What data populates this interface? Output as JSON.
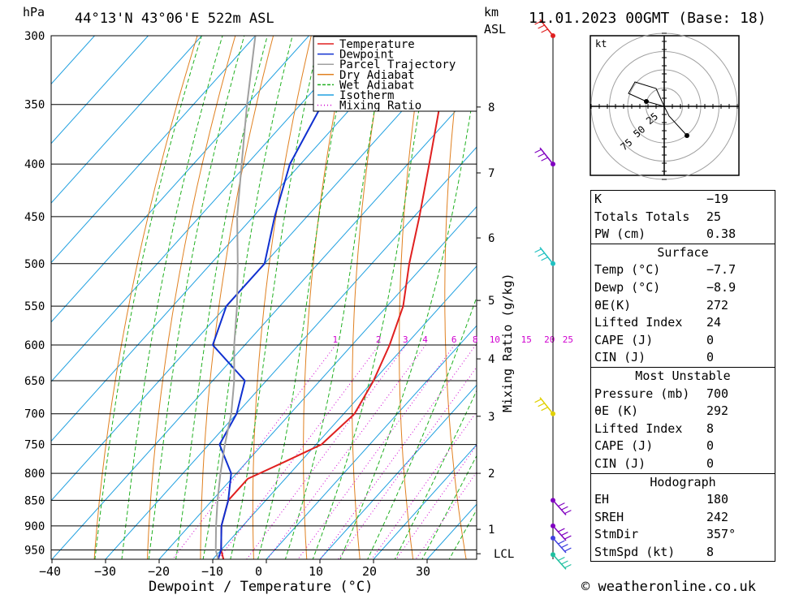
{
  "header": {
    "hpa_label": "hPa",
    "location": "44°13'N 43°06'E 522m ASL",
    "km_label": "km",
    "asl_label": "ASL",
    "datetime": "11.01.2023 00GMT (Base: 18)"
  },
  "footer": {
    "copyright": "© weatheronline.co.uk"
  },
  "legend": [
    {
      "label": "Temperature",
      "color": "#e02020",
      "dash": ""
    },
    {
      "label": "Dewpoint",
      "color": "#1030d0",
      "dash": ""
    },
    {
      "label": "Parcel Trajectory",
      "color": "#a0a0a0",
      "dash": ""
    },
    {
      "label": "Dry Adiabat",
      "color": "#e08020",
      "dash": ""
    },
    {
      "label": "Wet Adiabat",
      "color": "#20b020",
      "dash": "4,2"
    },
    {
      "label": "Isotherm",
      "color": "#20a0e0",
      "dash": ""
    },
    {
      "label": "Mixing Ratio",
      "color": "#d000d0",
      "dash": "1,3"
    }
  ],
  "chart_data": {
    "type": "line",
    "title": "44°13'N 43°06'E 522m ASL",
    "xlabel": "Dewpoint / Temperature (°C)",
    "ylabel": "hPa",
    "right_axis_label": "Mixing Ratio (g/kg)",
    "x_ticks": [
      -40,
      -30,
      -20,
      -10,
      0,
      10,
      20,
      30
    ],
    "x_tick_labels": [
      "−40",
      "−30",
      "−20",
      "−10",
      "0",
      "10",
      "20",
      "30"
    ],
    "p_levels": [
      300,
      350,
      400,
      450,
      500,
      550,
      600,
      650,
      700,
      750,
      800,
      850,
      900,
      950
    ],
    "km_ticks": [
      {
        "label": "8",
        "p": 352
      },
      {
        "label": "7",
        "p": 408
      },
      {
        "label": "6",
        "p": 472
      },
      {
        "label": "5",
        "p": 543
      },
      {
        "label": "4",
        "p": 619
      },
      {
        "label": "3",
        "p": 704
      },
      {
        "label": "2",
        "p": 800
      },
      {
        "label": "1",
        "p": 907
      },
      {
        "label": "LCL",
        "p": 958
      }
    ],
    "mixing_ratio_labels": [
      "1",
      "2",
      "3",
      "4",
      "6",
      "8",
      "10",
      "15",
      "20",
      "25"
    ],
    "mixing_ratio_values": [
      1,
      2,
      3,
      4,
      6,
      8,
      10,
      15,
      20,
      25
    ],
    "series": [
      {
        "name": "Temperature",
        "color": "#e02020",
        "points": [
          [
            300,
            -53
          ],
          [
            350,
            -44
          ],
          [
            400,
            -36
          ],
          [
            450,
            -29
          ],
          [
            500,
            -23
          ],
          [
            550,
            -17
          ],
          [
            600,
            -13
          ],
          [
            650,
            -10
          ],
          [
            700,
            -8
          ],
          [
            750,
            -9
          ],
          [
            780,
            -13
          ],
          [
            810,
            -17
          ],
          [
            850,
            -17
          ],
          [
            900,
            -14
          ],
          [
            950,
            -10
          ],
          [
            970,
            -8
          ]
        ]
      },
      {
        "name": "Dewpoint",
        "color": "#1030d0",
        "points": [
          [
            300,
            -74
          ],
          [
            350,
            -66
          ],
          [
            400,
            -62
          ],
          [
            450,
            -56
          ],
          [
            500,
            -50
          ],
          [
            550,
            -50
          ],
          [
            600,
            -46
          ],
          [
            650,
            -34
          ],
          [
            700,
            -30
          ],
          [
            750,
            -28
          ],
          [
            800,
            -21
          ],
          [
            850,
            -17
          ],
          [
            900,
            -14
          ],
          [
            950,
            -10
          ],
          [
            970,
            -9
          ]
        ]
      },
      {
        "name": "Parcel Trajectory",
        "color": "#a0a0a0",
        "points": [
          [
            300,
            -90
          ],
          [
            350,
            -80
          ],
          [
            400,
            -71
          ],
          [
            450,
            -63
          ],
          [
            500,
            -55
          ],
          [
            550,
            -48
          ],
          [
            600,
            -42
          ],
          [
            650,
            -36
          ],
          [
            700,
            -31
          ],
          [
            750,
            -27
          ],
          [
            800,
            -23
          ],
          [
            850,
            -19
          ],
          [
            900,
            -15
          ],
          [
            950,
            -11
          ],
          [
            970,
            -9
          ]
        ]
      }
    ],
    "wind_barbs": [
      {
        "p": 300,
        "color": "#e02020"
      },
      {
        "p": 400,
        "color": "#8000c0"
      },
      {
        "p": 500,
        "color": "#20c0c0"
      },
      {
        "p": 700,
        "color": "#e0d000"
      },
      {
        "p": 850,
        "color": "#8000c0"
      },
      {
        "p": 900,
        "color": "#8000c0"
      },
      {
        "p": 925,
        "color": "#4040e0"
      },
      {
        "p": 960,
        "color": "#20c0a0"
      }
    ],
    "hodograph": {
      "unit_label": "kt",
      "ring_labels": [
        "25",
        "50",
        "75"
      ]
    }
  },
  "indices": {
    "general": [
      {
        "label": "K",
        "value": "−19"
      },
      {
        "label": "Totals Totals",
        "value": "25"
      },
      {
        "label": "PW (cm)",
        "value": "0.38"
      }
    ],
    "surface_title": "Surface",
    "surface": [
      {
        "label": "Temp (°C)",
        "value": "−7.7"
      },
      {
        "label": "Dewp (°C)",
        "value": "−8.9"
      },
      {
        "label": "θE(K)",
        "value": "272"
      },
      {
        "label": "Lifted Index",
        "value": "24"
      },
      {
        "label": "CAPE (J)",
        "value": "0"
      },
      {
        "label": "CIN (J)",
        "value": "0"
      }
    ],
    "most_unstable_title": "Most Unstable",
    "most_unstable": [
      {
        "label": "Pressure (mb)",
        "value": "700"
      },
      {
        "label": "θE (K)",
        "value": "292"
      },
      {
        "label": "Lifted Index",
        "value": "8"
      },
      {
        "label": "CAPE (J)",
        "value": "0"
      },
      {
        "label": "CIN (J)",
        "value": "0"
      }
    ],
    "hodograph_title": "Hodograph",
    "hodograph": [
      {
        "label": "EH",
        "value": "180"
      },
      {
        "label": "SREH",
        "value": "242"
      },
      {
        "label": "StmDir",
        "value": "357°"
      },
      {
        "label": "StmSpd (kt)",
        "value": "8"
      }
    ]
  }
}
